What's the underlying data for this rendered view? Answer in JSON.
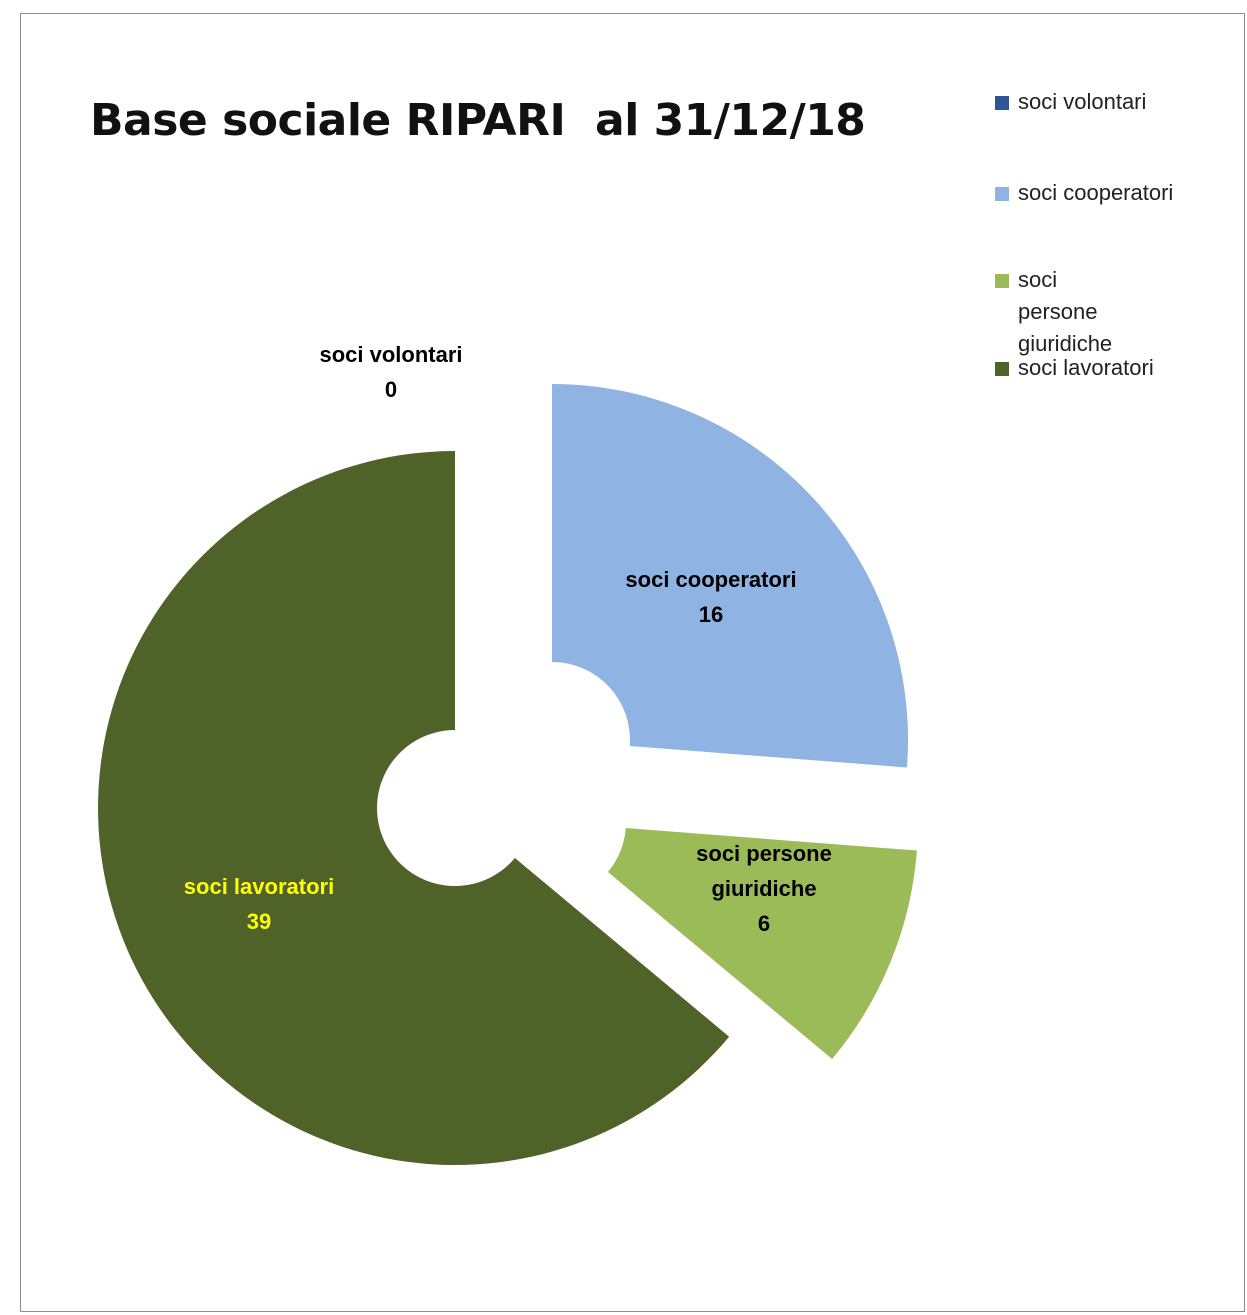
{
  "chart_data": {
    "type": "pie",
    "variant": "exploded doughnut",
    "title": "Base sociale RIPARI  al 31/12/18",
    "legend_position": "top-right",
    "series": [
      {
        "categories": [
          "soci volontari",
          "soci cooperatori",
          "soci persone giuridiche",
          "soci lavoratori"
        ],
        "values": [
          0,
          16,
          6,
          39
        ],
        "colors": [
          "#2f5597",
          "#8fb3e2",
          "#9bbb59",
          "#4f6228"
        ],
        "data_labels": [
          {
            "name": "soci volontari",
            "value": "0",
            "color": "#000000"
          },
          {
            "name": "soci cooperatori",
            "value": "16",
            "color": "#000000"
          },
          {
            "name": "soci persone giuridiche",
            "value": "6",
            "color": "#000000"
          },
          {
            "name": "soci lavoratori",
            "value": "39",
            "color": "#ffff00"
          }
        ]
      }
    ],
    "legend": [
      {
        "label": "soci volontari",
        "color": "#2f5597"
      },
      {
        "label": "soci cooperatori",
        "color": "#8fb3e2"
      },
      {
        "label": "soci persone giuridiche",
        "color": "#9bbb59"
      },
      {
        "label": "soci lavoratori",
        "color": "#4f6228"
      }
    ]
  }
}
